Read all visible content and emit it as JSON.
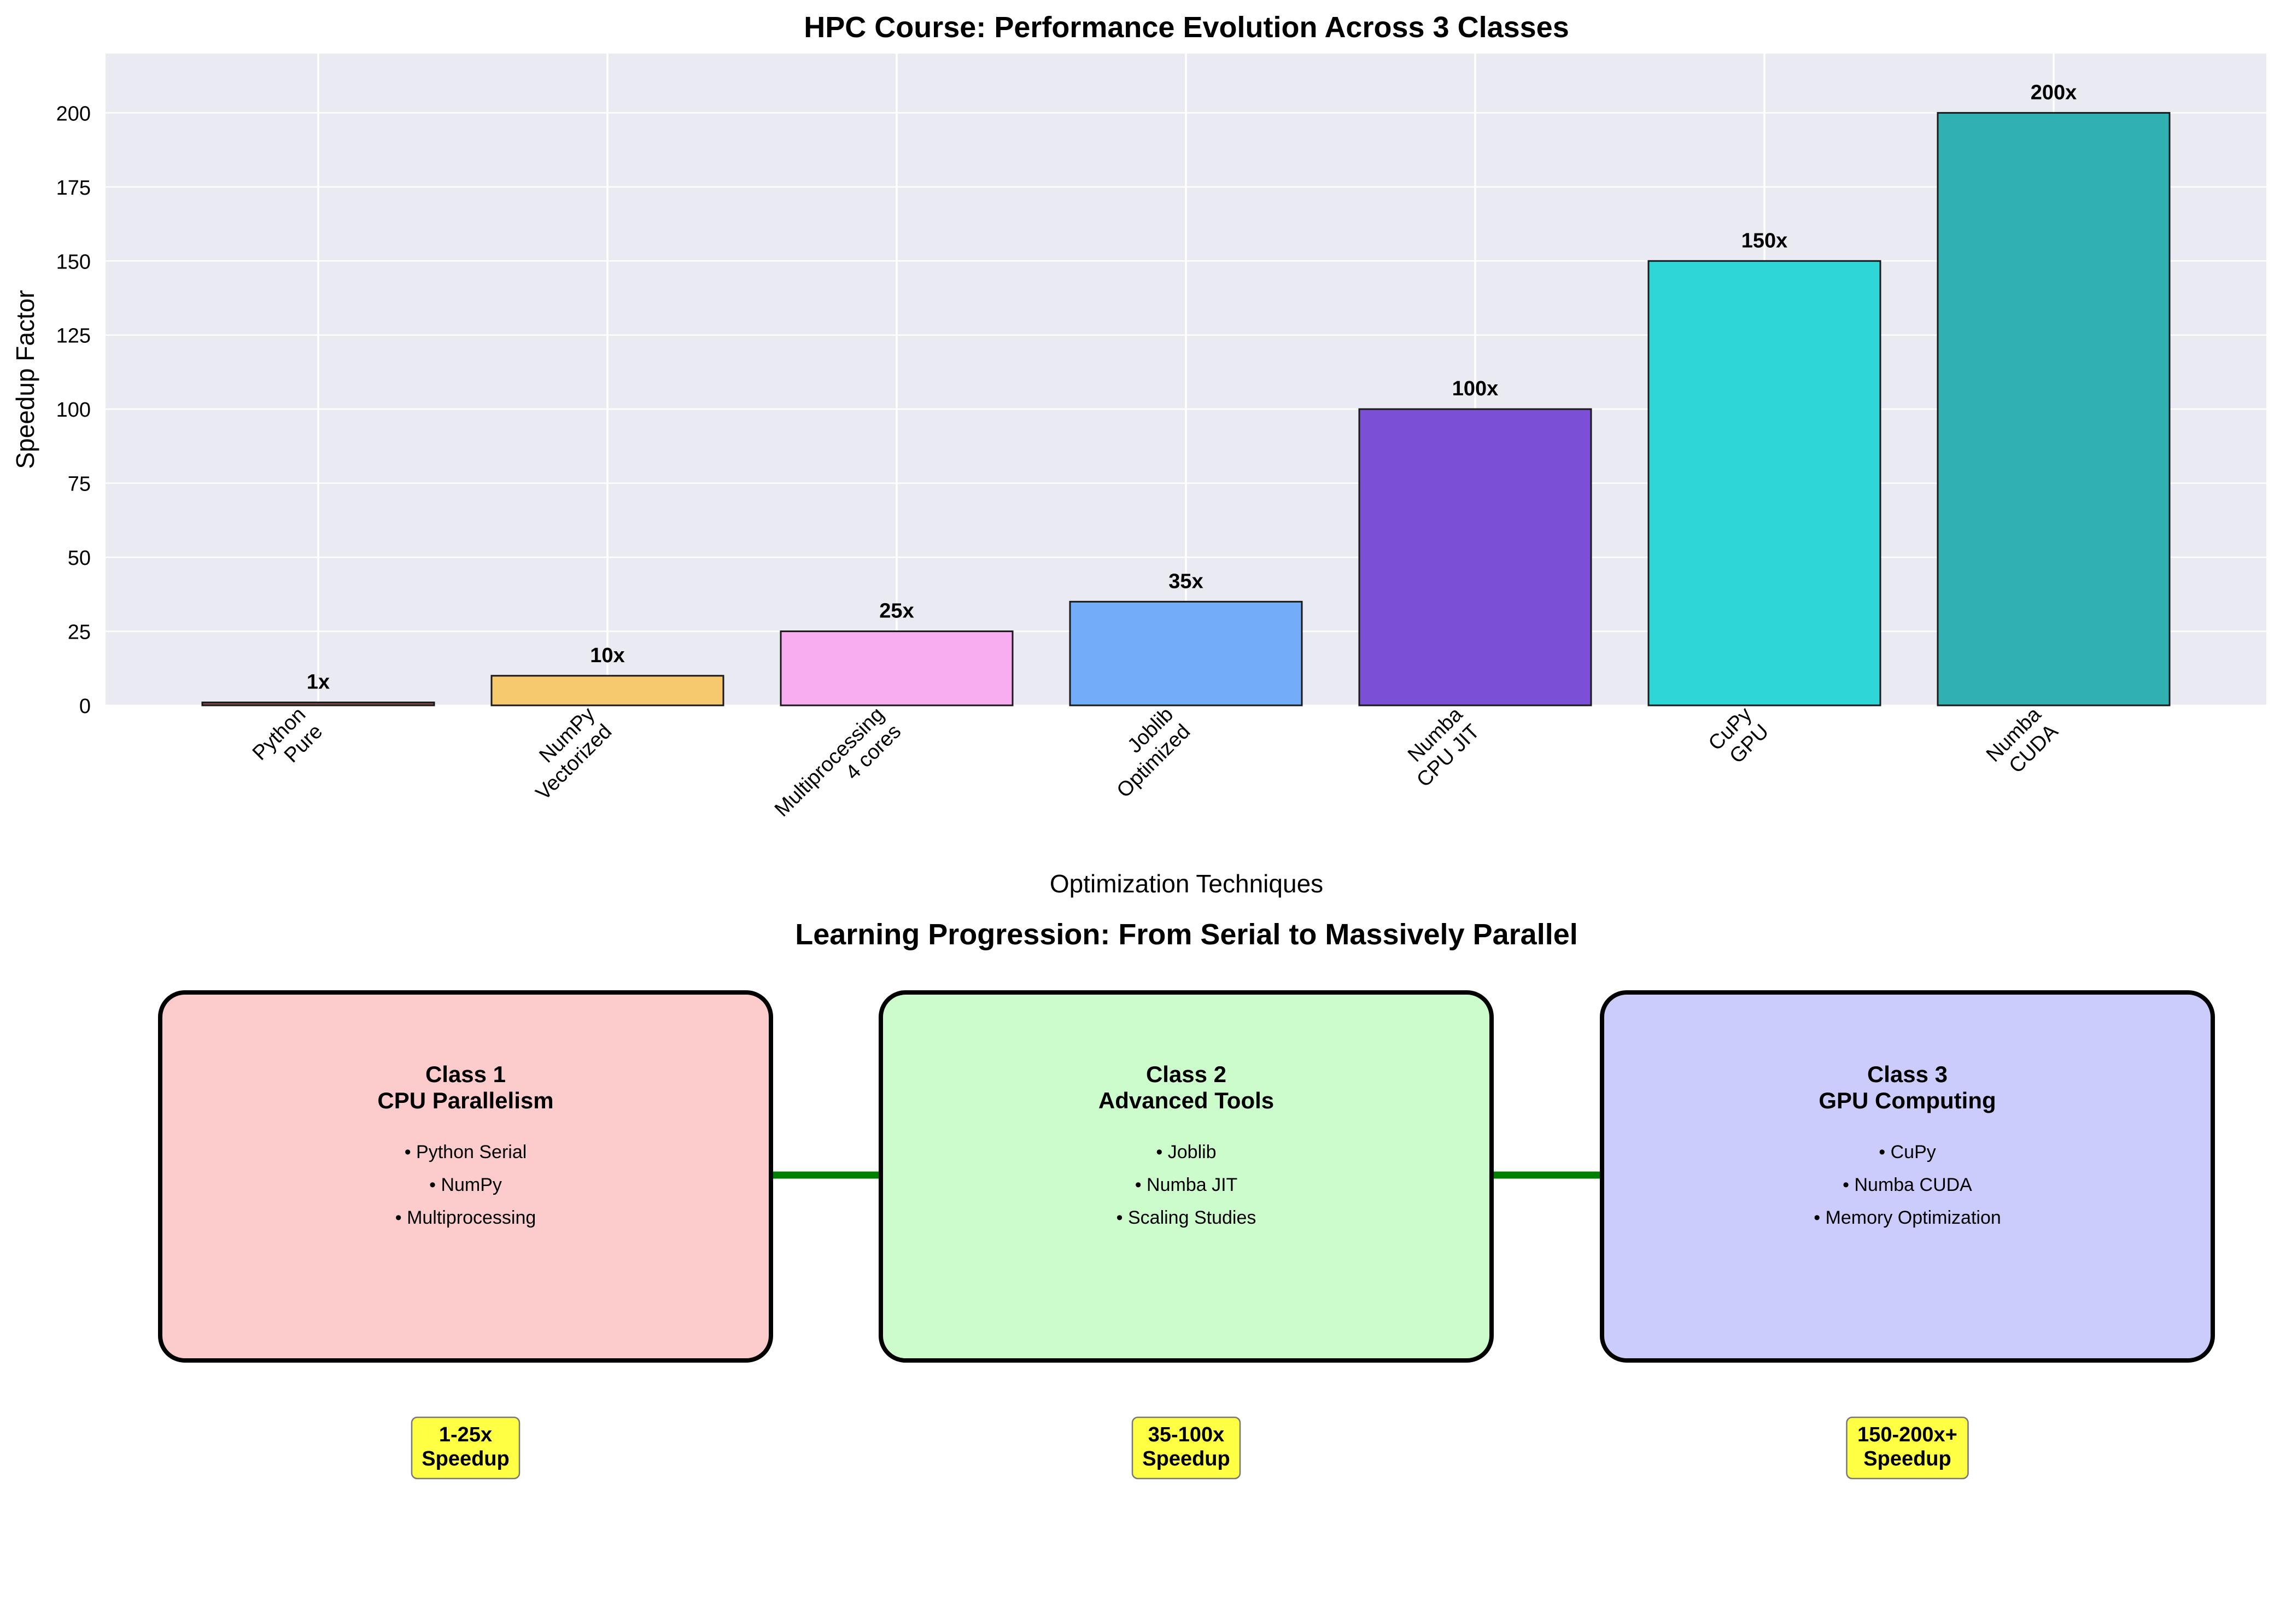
{
  "chart_data": {
    "type": "bar",
    "title": "HPC Course: Performance Evolution Across 3 Classes",
    "xlabel": "Optimization Techniques",
    "ylabel": "Speedup Factor",
    "ylim": [
      0,
      220
    ],
    "yticks": [
      0,
      25,
      50,
      75,
      100,
      125,
      150,
      175,
      200
    ],
    "grid": true,
    "categories": [
      [
        "Python",
        "Pure"
      ],
      [
        "NumPy",
        "Vectorized"
      ],
      [
        "Multiprocessing",
        "4 cores"
      ],
      [
        "Joblib",
        "Optimized"
      ],
      [
        "Numba",
        "CPU JIT"
      ],
      [
        "CuPy",
        "GPU"
      ],
      [
        "Numba",
        "CUDA"
      ]
    ],
    "values": [
      1,
      10,
      25,
      35,
      100,
      150,
      200
    ],
    "value_labels": [
      "1x",
      "10x",
      "25x",
      "35x",
      "100x",
      "150x",
      "200x"
    ],
    "colors": [
      "#8B4A4A",
      "#F7C96E",
      "#F7ADEF",
      "#73ADFA",
      "#7B4FD6",
      "#2FD6D8",
      "#30B0B0"
    ]
  },
  "progression": {
    "title": "Learning Progression: From Serial to Massively Parallel",
    "arrow_color": "#008000",
    "badge_color": "#FFFF44",
    "classes": [
      {
        "title": "Class 1",
        "subtitle": "CPU Parallelism",
        "items": [
          "• Python Serial",
          "• NumPy",
          "• Multiprocessing"
        ],
        "color": "#FCCBCB",
        "badge": [
          "1-25x",
          "Speedup"
        ]
      },
      {
        "title": "Class 2",
        "subtitle": "Advanced Tools",
        "items": [
          "• Joblib",
          "• Numba JIT",
          "• Scaling Studies"
        ],
        "color": "#CCFCCC",
        "badge": [
          "35-100x",
          "Speedup"
        ]
      },
      {
        "title": "Class 3",
        "subtitle": "GPU Computing",
        "items": [
          "• CuPy",
          "• Numba CUDA",
          "• Memory Optimization"
        ],
        "color": "#CCCCFC",
        "badge": [
          "150-200x+",
          "Speedup"
        ]
      }
    ]
  }
}
